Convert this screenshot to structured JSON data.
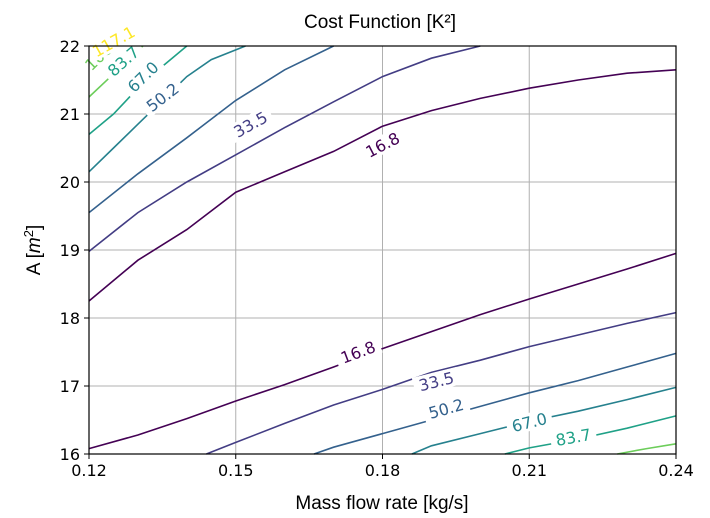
{
  "chart_data": {
    "type": "contour",
    "title": "Cost Function [K²]",
    "xlabel": "Mass flow rate [kg/s]",
    "ylabel": "A [m²]",
    "xlim": [
      0.12,
      0.24
    ],
    "ylim": [
      16,
      22
    ],
    "xticks": [
      "0.12",
      "0.15",
      "0.18",
      "0.21",
      "0.24"
    ],
    "yticks": [
      "16",
      "17",
      "18",
      "19",
      "20",
      "21",
      "22"
    ],
    "grid": true,
    "levels": [
      16.8,
      33.5,
      50.2,
      67.0,
      83.7,
      100.4,
      117.1
    ],
    "level_labels": [
      "16.8",
      "33.5",
      "50.2",
      "67.0",
      "83.7",
      "100.4",
      "117.1"
    ],
    "colors": [
      "#440154",
      "#433d84",
      "#34618d",
      "#26818e",
      "#1fa187",
      "#6ccd5a",
      "#fde725"
    ],
    "contours": [
      {
        "level": 16.8,
        "color": "#440154",
        "label": "16.8",
        "points": [
          [
            0.12,
            18.25
          ],
          [
            0.13,
            18.85
          ],
          [
            0.14,
            19.3
          ],
          [
            0.15,
            19.85
          ],
          [
            0.16,
            20.15
          ],
          [
            0.17,
            20.45
          ],
          [
            0.18,
            20.82
          ],
          [
            0.19,
            21.05
          ],
          [
            0.2,
            21.23
          ],
          [
            0.21,
            21.38
          ],
          [
            0.22,
            21.5
          ],
          [
            0.23,
            21.6
          ],
          [
            0.24,
            21.65
          ]
        ],
        "label_at": [
          0.18,
          20.55
        ]
      },
      {
        "level": 16.8,
        "color": "#440154",
        "label": "16.8",
        "points": [
          [
            0.12,
            16.08
          ],
          [
            0.13,
            16.28
          ],
          [
            0.14,
            16.52
          ],
          [
            0.15,
            16.78
          ],
          [
            0.16,
            17.02
          ],
          [
            0.17,
            17.28
          ],
          [
            0.18,
            17.55
          ],
          [
            0.19,
            17.8
          ],
          [
            0.2,
            18.05
          ],
          [
            0.21,
            18.28
          ],
          [
            0.22,
            18.5
          ],
          [
            0.23,
            18.72
          ],
          [
            0.24,
            18.95
          ]
        ],
        "label_at": [
          0.175,
          17.5
        ]
      },
      {
        "level": 33.5,
        "color": "#433d84",
        "label": "33.5",
        "points": [
          [
            0.12,
            18.98
          ],
          [
            0.13,
            19.55
          ],
          [
            0.14,
            20.0
          ],
          [
            0.15,
            20.4
          ],
          [
            0.16,
            20.8
          ],
          [
            0.17,
            21.18
          ],
          [
            0.18,
            21.55
          ],
          [
            0.19,
            21.82
          ],
          [
            0.2,
            22.0
          ]
        ],
        "label_at": [
          0.153,
          20.85
        ]
      },
      {
        "level": 33.5,
        "color": "#433d84",
        "label": "33.5",
        "points": [
          [
            0.144,
            16.0
          ],
          [
            0.15,
            16.17
          ],
          [
            0.16,
            16.45
          ],
          [
            0.17,
            16.72
          ],
          [
            0.18,
            16.95
          ],
          [
            0.19,
            17.2
          ],
          [
            0.2,
            17.38
          ],
          [
            0.21,
            17.58
          ],
          [
            0.22,
            17.75
          ],
          [
            0.23,
            17.92
          ],
          [
            0.24,
            18.08
          ]
        ],
        "label_at": [
          0.191,
          17.07
        ]
      },
      {
        "level": 50.2,
        "color": "#34618d",
        "label": "50.2",
        "points": [
          [
            0.12,
            19.55
          ],
          [
            0.13,
            20.12
          ],
          [
            0.14,
            20.65
          ],
          [
            0.15,
            21.2
          ],
          [
            0.16,
            21.65
          ],
          [
            0.17,
            22.0
          ]
        ],
        "label_at": [
          0.135,
          21.25
        ]
      },
      {
        "level": 50.2,
        "color": "#34618d",
        "label": "50.2",
        "points": [
          [
            0.166,
            16.0
          ],
          [
            0.17,
            16.1
          ],
          [
            0.18,
            16.3
          ],
          [
            0.19,
            16.5
          ],
          [
            0.2,
            16.7
          ],
          [
            0.21,
            16.9
          ],
          [
            0.22,
            17.08
          ],
          [
            0.23,
            17.28
          ],
          [
            0.24,
            17.48
          ]
        ],
        "label_at": [
          0.193,
          16.67
        ]
      },
      {
        "level": 67.0,
        "color": "#26818e",
        "label": "67.0",
        "points": [
          [
            0.12,
            20.15
          ],
          [
            0.125,
            20.5
          ],
          [
            0.13,
            20.85
          ],
          [
            0.135,
            21.2
          ],
          [
            0.14,
            21.55
          ],
          [
            0.145,
            21.8
          ],
          [
            0.152,
            22.0
          ]
        ],
        "label_at": [
          0.131,
          21.55
        ]
      },
      {
        "level": 67.0,
        "color": "#26818e",
        "label": "67.0",
        "points": [
          [
            0.186,
            16.0
          ],
          [
            0.19,
            16.12
          ],
          [
            0.2,
            16.3
          ],
          [
            0.21,
            16.48
          ],
          [
            0.22,
            16.63
          ],
          [
            0.23,
            16.8
          ],
          [
            0.24,
            16.98
          ]
        ],
        "label_at": [
          0.21,
          16.47
        ]
      },
      {
        "level": 83.7,
        "color": "#1fa187",
        "label": "83.7",
        "points": [
          [
            0.12,
            20.7
          ],
          [
            0.125,
            21.0
          ],
          [
            0.13,
            21.38
          ],
          [
            0.135,
            21.7
          ],
          [
            0.14,
            22.0
          ]
        ],
        "label_at": [
          0.127,
          21.78
        ]
      },
      {
        "level": 83.7,
        "color": "#1fa187",
        "label": "83.7",
        "points": [
          [
            0.205,
            16.0
          ],
          [
            0.21,
            16.09
          ],
          [
            0.22,
            16.22
          ],
          [
            0.23,
            16.38
          ],
          [
            0.24,
            16.56
          ]
        ],
        "label_at": [
          0.219,
          16.25
        ]
      },
      {
        "level": 100.4,
        "color": "#6ccd5a",
        "label": "100.4",
        "points": [
          [
            0.12,
            21.25
          ],
          [
            0.124,
            21.52
          ],
          [
            0.128,
            21.8
          ],
          [
            0.131,
            22.0
          ]
        ],
        "label_at": [
          0.123,
          21.92
        ]
      },
      {
        "level": 100.4,
        "color": "#6ccd5a",
        "label": "",
        "points": [
          [
            0.228,
            16.0
          ],
          [
            0.234,
            16.08
          ],
          [
            0.24,
            16.15
          ]
        ],
        "label_at": null
      },
      {
        "level": 117.1,
        "color": "#fde725",
        "label": "117.1",
        "points": [
          [
            0.12,
            21.78
          ],
          [
            0.122,
            21.92
          ],
          [
            0.124,
            22.0
          ]
        ],
        "label_at": [
          0.125,
          22.07
        ]
      }
    ]
  }
}
